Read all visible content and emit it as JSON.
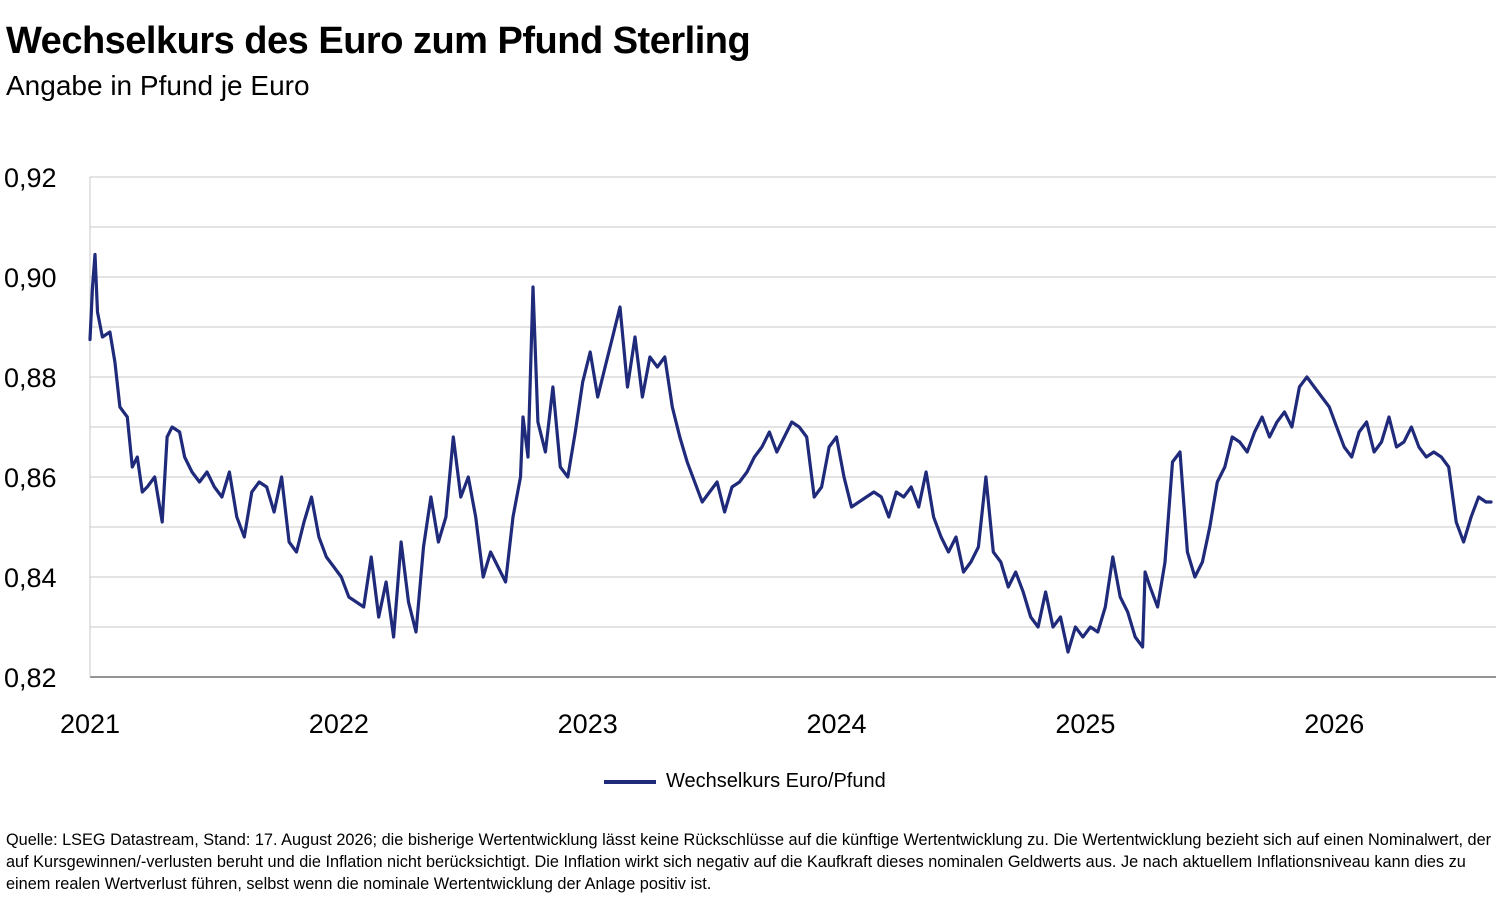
{
  "header": {
    "title": "Wechselkurs des Euro zum Pfund Sterling",
    "subtitle": "Angabe in Pfund je Euro"
  },
  "legend": {
    "label": "Wechselkurs Euro/Pfund",
    "color": "#1f2a7a"
  },
  "footnote": "Quelle: LSEG Datastream, Stand: 17. August 2026; die bisherige Wertentwicklung lässt keine Rückschlüsse auf die künftige Wertentwicklung zu. Die Wertentwicklung bezieht sich auf einen Nominalwert, der auf Kursgewinnen/-verlusten beruht und die Inflation nicht berücksichtigt. Die Inflation wirkt sich negativ auf die Kaufkraft dieses nominalen Geldwerts aus. Je nach aktuellem Inflationsniveau kann dies zu einem realen Wertverlust führen, selbst wenn die nominale Wertentwicklung der Anlage positiv ist.",
  "chart_data": {
    "type": "line",
    "title": "Wechselkurs des Euro zum Pfund Sterling",
    "subtitle": "Angabe in Pfund je Euro",
    "xlabel": "",
    "ylabel": "",
    "xlim": [
      2021.0,
      2026.65
    ],
    "ylim": [
      0.82,
      0.92
    ],
    "yticks": [
      0.82,
      0.84,
      0.86,
      0.88,
      0.9,
      0.92
    ],
    "ytick_labels": [
      "0,82",
      "0,84",
      "0,86",
      "0,88",
      "0,90",
      "0,92"
    ],
    "xticks": [
      2021,
      2022,
      2023,
      2024,
      2025,
      2026
    ],
    "xtick_labels": [
      "2021",
      "2022",
      "2023",
      "2024",
      "2025",
      "2026"
    ],
    "grid": "horizontal",
    "legend_position": "bottom-center",
    "series": [
      {
        "name": "Wechselkurs Euro/Pfund",
        "color": "#1f2a7a",
        "x": [
          2021.0,
          2021.01,
          2021.02,
          2021.03,
          2021.05,
          2021.08,
          2021.1,
          2021.12,
          2021.15,
          2021.17,
          2021.19,
          2021.21,
          2021.23,
          2021.26,
          2021.29,
          2021.31,
          2021.33,
          2021.36,
          2021.38,
          2021.41,
          2021.44,
          2021.47,
          2021.5,
          2021.53,
          2021.56,
          2021.59,
          2021.62,
          2021.65,
          2021.68,
          2021.71,
          2021.74,
          2021.77,
          2021.8,
          2021.83,
          2021.86,
          2021.89,
          2021.92,
          2021.95,
          2021.98,
          2022.01,
          2022.04,
          2022.07,
          2022.1,
          2022.13,
          2022.16,
          2022.19,
          2022.22,
          2022.25,
          2022.28,
          2022.31,
          2022.34,
          2022.37,
          2022.4,
          2022.43,
          2022.46,
          2022.49,
          2022.52,
          2022.55,
          2022.58,
          2022.61,
          2022.64,
          2022.67,
          2022.7,
          2022.73,
          2022.74,
          2022.76,
          2022.78,
          2022.8,
          2022.83,
          2022.86,
          2022.89,
          2022.92,
          2022.95,
          2022.98,
          2023.01,
          2023.04,
          2023.07,
          2023.1,
          2023.13,
          2023.16,
          2023.19,
          2023.22,
          2023.25,
          2023.28,
          2023.31,
          2023.34,
          2023.37,
          2023.4,
          2023.43,
          2023.46,
          2023.49,
          2023.52,
          2023.55,
          2023.58,
          2023.61,
          2023.64,
          2023.67,
          2023.7,
          2023.73,
          2023.76,
          2023.79,
          2023.82,
          2023.85,
          2023.88,
          2023.91,
          2023.94,
          2023.97,
          2024.0,
          2024.03,
          2024.06,
          2024.09,
          2024.12,
          2024.15,
          2024.18,
          2024.21,
          2024.24,
          2024.27,
          2024.3,
          2024.33,
          2024.36,
          2024.39,
          2024.42,
          2024.45,
          2024.48,
          2024.51,
          2024.54,
          2024.57,
          2024.6,
          2024.63,
          2024.66,
          2024.69,
          2024.72,
          2024.75,
          2024.78,
          2024.81,
          2024.84,
          2024.87,
          2024.9,
          2024.93,
          2024.96,
          2024.99,
          2025.02,
          2025.05,
          2025.08,
          2025.11,
          2025.14,
          2025.17,
          2025.2,
          2025.23,
          2025.24,
          2025.26,
          2025.29,
          2025.32,
          2025.35,
          2025.38,
          2025.41,
          2025.44,
          2025.47,
          2025.5,
          2025.53,
          2025.56,
          2025.59,
          2025.62,
          2025.65,
          2025.68,
          2025.71,
          2025.74,
          2025.77,
          2025.8,
          2025.83,
          2025.86,
          2025.89,
          2025.92,
          2025.95,
          2025.98,
          2026.01,
          2026.04,
          2026.07,
          2026.1,
          2026.13,
          2026.16,
          2026.19,
          2026.22,
          2026.25,
          2026.28,
          2026.31,
          2026.34,
          2026.37,
          2026.4,
          2026.43,
          2026.46,
          2026.49,
          2026.52,
          2026.55,
          2026.58,
          2026.61,
          2026.63
        ],
        "y": [
          0.8875,
          0.898,
          0.9045,
          0.893,
          0.888,
          0.889,
          0.883,
          0.874,
          0.872,
          0.862,
          0.864,
          0.857,
          0.858,
          0.86,
          0.851,
          0.868,
          0.87,
          0.869,
          0.864,
          0.861,
          0.859,
          0.861,
          0.858,
          0.856,
          0.861,
          0.852,
          0.848,
          0.857,
          0.859,
          0.858,
          0.853,
          0.86,
          0.847,
          0.845,
          0.851,
          0.856,
          0.848,
          0.844,
          0.842,
          0.84,
          0.836,
          0.835,
          0.834,
          0.844,
          0.832,
          0.839,
          0.828,
          0.847,
          0.835,
          0.829,
          0.846,
          0.856,
          0.847,
          0.852,
          0.868,
          0.856,
          0.86,
          0.852,
          0.84,
          0.845,
          0.842,
          0.839,
          0.852,
          0.86,
          0.872,
          0.864,
          0.898,
          0.871,
          0.865,
          0.878,
          0.862,
          0.86,
          0.869,
          0.879,
          0.885,
          0.876,
          0.882,
          0.888,
          0.894,
          0.878,
          0.888,
          0.876,
          0.884,
          0.882,
          0.884,
          0.874,
          0.868,
          0.863,
          0.859,
          0.855,
          0.857,
          0.859,
          0.853,
          0.858,
          0.859,
          0.861,
          0.864,
          0.866,
          0.869,
          0.865,
          0.868,
          0.871,
          0.87,
          0.868,
          0.856,
          0.858,
          0.866,
          0.868,
          0.86,
          0.854,
          0.855,
          0.856,
          0.857,
          0.856,
          0.852,
          0.857,
          0.856,
          0.858,
          0.854,
          0.861,
          0.852,
          0.848,
          0.845,
          0.848,
          0.841,
          0.843,
          0.846,
          0.86,
          0.845,
          0.843,
          0.838,
          0.841,
          0.837,
          0.832,
          0.83,
          0.837,
          0.83,
          0.832,
          0.825,
          0.83,
          0.828,
          0.83,
          0.829,
          0.834,
          0.844,
          0.836,
          0.833,
          0.828,
          0.826,
          0.841,
          0.838,
          0.834,
          0.843,
          0.863,
          0.865,
          0.845,
          0.84,
          0.843,
          0.85,
          0.859,
          0.862,
          0.868,
          0.867,
          0.865,
          0.869,
          0.872,
          0.868,
          0.871,
          0.873,
          0.87,
          0.878,
          0.88,
          0.878,
          0.876,
          0.874,
          0.87,
          0.866,
          0.864,
          0.869,
          0.871,
          0.865,
          0.867,
          0.872,
          0.866,
          0.867,
          0.87,
          0.866,
          0.864,
          0.865,
          0.864,
          0.862,
          0.851,
          0.847,
          0.852,
          0.856,
          0.855,
          0.855
        ]
      }
    ]
  }
}
